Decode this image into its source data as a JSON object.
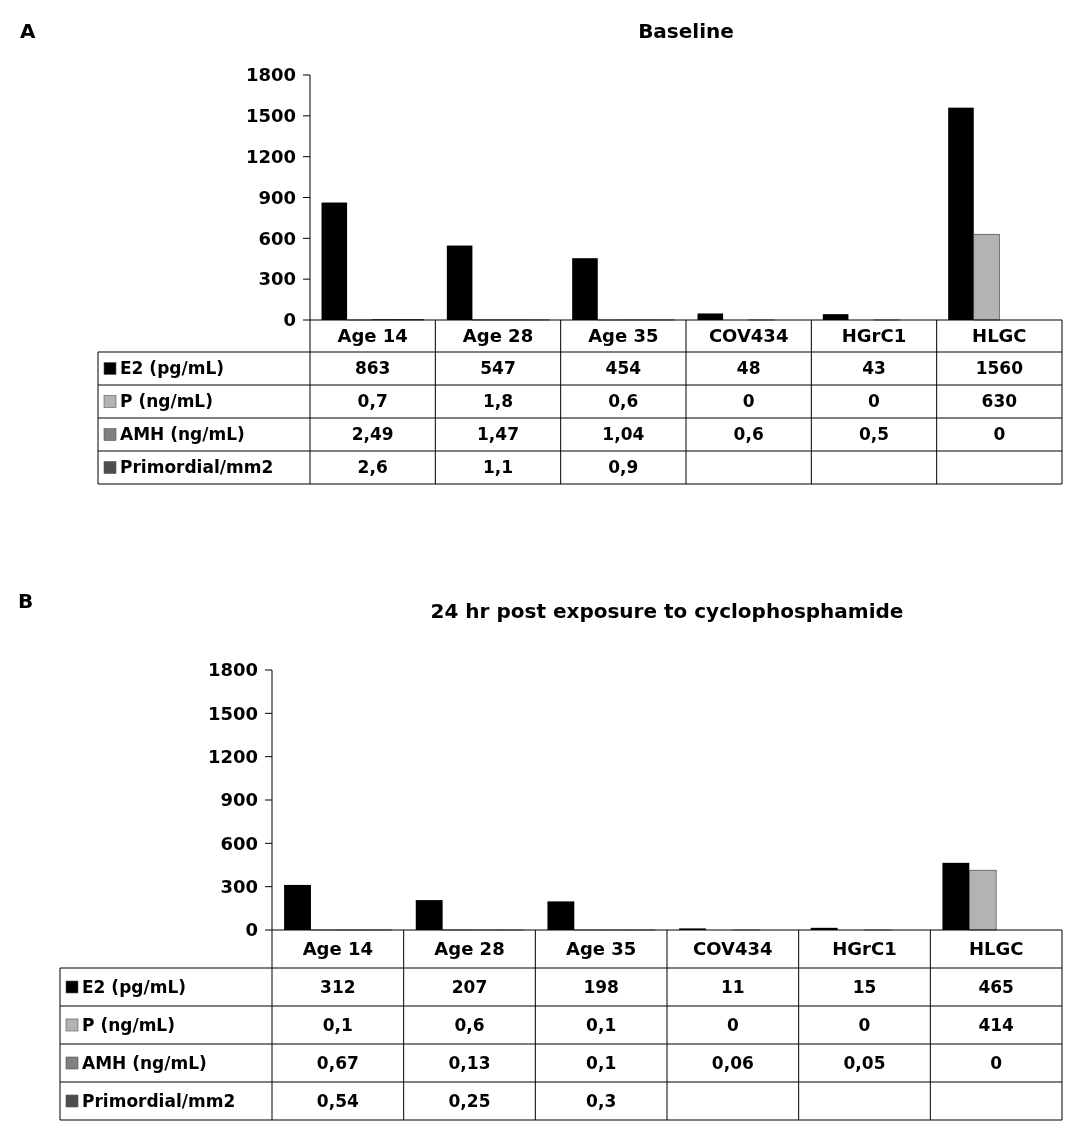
{
  "chart_data": [
    {
      "type": "bar",
      "title": "Baseline",
      "annotations": [
        "A"
      ],
      "categories": [
        "Age 14",
        "Age 28",
        "Age 35",
        "COV434",
        "HGrC1",
        "HLGC"
      ],
      "ylim": [
        0,
        1800
      ],
      "yticks": [
        0,
        300,
        600,
        900,
        1200,
        1500,
        1800
      ],
      "legend": "bottom",
      "series": [
        {
          "name": "E2 (pg/mL)",
          "color": "#000000",
          "values": [
            863,
            547,
            454,
            48,
            43,
            1560
          ],
          "value_labels": [
            "863",
            "547",
            "454",
            "48",
            "43",
            "1560"
          ]
        },
        {
          "name": "P (ng/mL)",
          "color": "#b3b3b3",
          "values": [
            0.7,
            1.8,
            0.6,
            0,
            0,
            630
          ],
          "value_labels": [
            "0,7",
            "1,8",
            "0,6",
            "0",
            "0",
            "630"
          ]
        },
        {
          "name": "AMH (ng/mL)",
          "color": "#808080",
          "values": [
            2.49,
            1.47,
            1.04,
            0.6,
            0.5,
            0
          ],
          "value_labels": [
            "2,49",
            "1,47",
            "1,04",
            "0,6",
            "0,5",
            "0"
          ]
        },
        {
          "name": "Primordial/mm2",
          "color": "#4d4d4d",
          "values": [
            2.6,
            1.1,
            0.9,
            null,
            null,
            null
          ],
          "value_labels": [
            "2,6",
            "1,1",
            "0,9",
            null,
            null,
            null
          ]
        }
      ]
    },
    {
      "type": "bar",
      "title": "24 hr post exposure to cyclophosphamide",
      "annotations": [
        "B"
      ],
      "categories": [
        "Age 14",
        "Age 28",
        "Age 35",
        "COV434",
        "HGrC1",
        "HLGC"
      ],
      "ylim": [
        0,
        1800
      ],
      "yticks": [
        0,
        300,
        600,
        900,
        1200,
        1500,
        1800
      ],
      "legend": "bottom",
      "series": [
        {
          "name": "E2 (pg/mL)",
          "color": "#000000",
          "values": [
            312,
            207,
            198,
            11,
            15,
            465
          ],
          "value_labels": [
            "312",
            "207",
            "198",
            "11",
            "15",
            "465"
          ]
        },
        {
          "name": "P (ng/mL)",
          "color": "#b3b3b3",
          "values": [
            0.1,
            0.6,
            0.1,
            0,
            0,
            414
          ],
          "value_labels": [
            "0,1",
            "0,6",
            "0,1",
            "0",
            "0",
            "414"
          ]
        },
        {
          "name": "AMH (ng/mL)",
          "color": "#808080",
          "values": [
            0.67,
            0.13,
            0.1,
            0.06,
            0.05,
            0
          ],
          "value_labels": [
            "0,67",
            "0,13",
            "0,1",
            "0,06",
            "0,05",
            "0"
          ]
        },
        {
          "name": "Primordial/mm2",
          "color": "#4d4d4d",
          "values": [
            0.54,
            0.25,
            0.3,
            null,
            null,
            null
          ],
          "value_labels": [
            "0,54",
            "0,25",
            "0,3",
            null,
            null,
            null
          ]
        }
      ]
    }
  ]
}
